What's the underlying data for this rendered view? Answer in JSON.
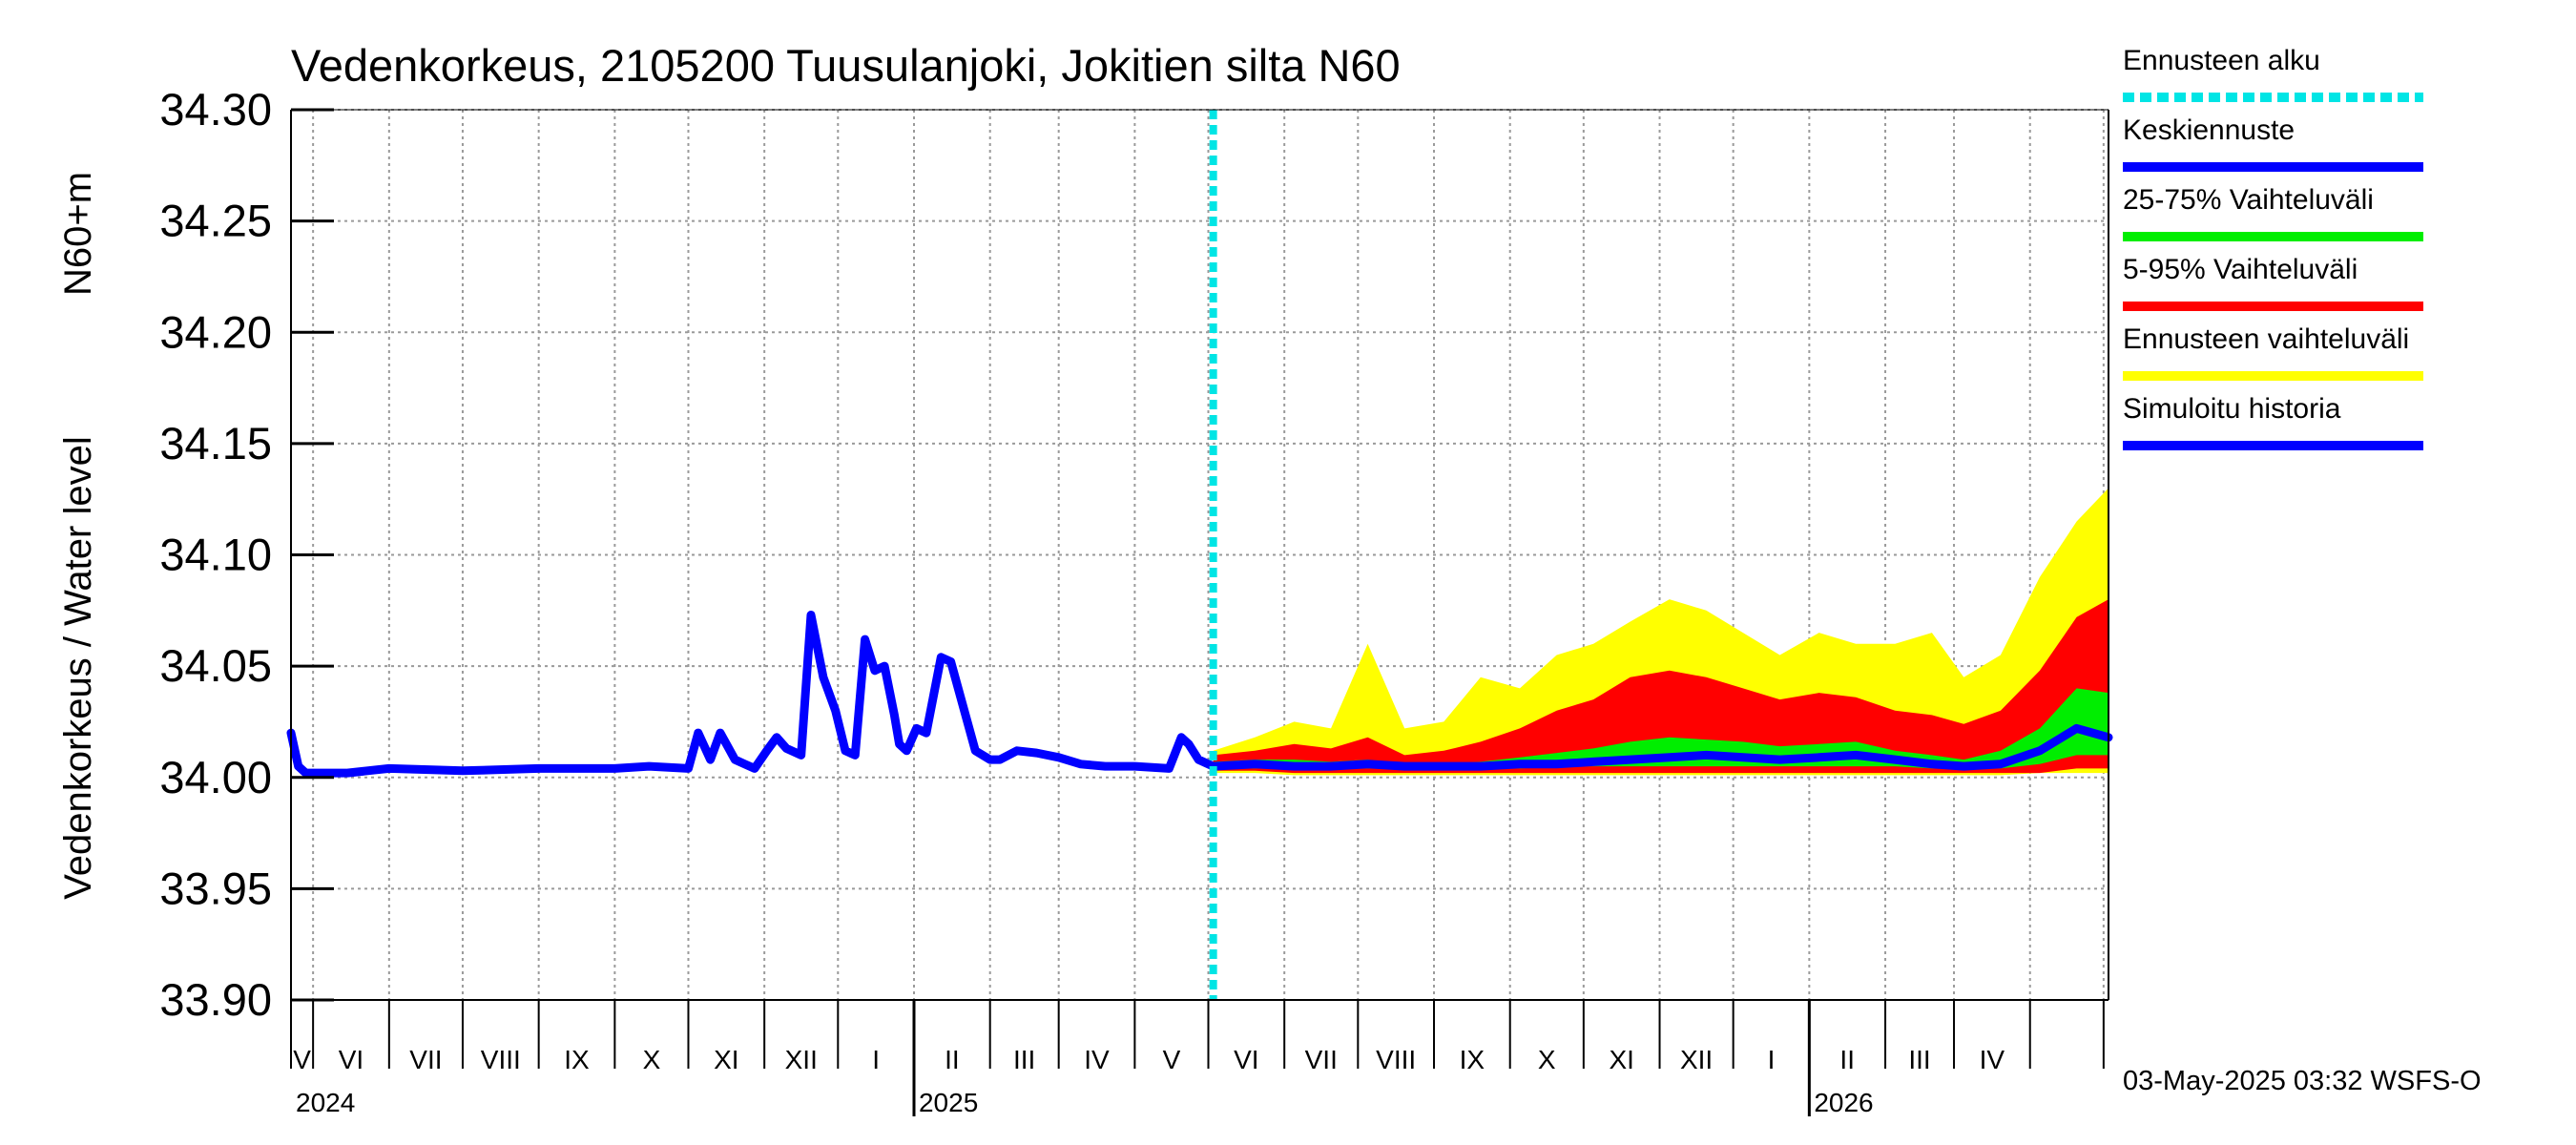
{
  "chart_data": {
    "type": "area",
    "title": "Vedenkorkeus, 2105200 Tuusulanjoki, Jokitien silta N60",
    "ylabel_main": "Vedenkorkeus / Water level",
    "ylabel_unit": "N60+m",
    "ylim": [
      33.9,
      34.3
    ],
    "yticks": [
      "34.30",
      "34.25",
      "34.20",
      "34.15",
      "34.10",
      "34.05",
      "34.00",
      "33.95",
      "33.90"
    ],
    "grid": true,
    "x_range": [
      "2024-04-22",
      "2026-05-03"
    ],
    "forecast_start": "2025-05-03",
    "month_labels": [
      "V",
      "VI",
      "VII",
      "VIII",
      "IX",
      "X",
      "XI",
      "XII",
      "I",
      "II",
      "III",
      "IV",
      "V",
      "VI",
      "VII",
      "VIII",
      "IX",
      "X",
      "XI",
      "XII",
      "I",
      "II",
      "III",
      "IV"
    ],
    "year_labels": [
      "2024",
      "2025",
      "2026"
    ],
    "legend": [
      {
        "label": "Ennusteen alku",
        "color": "#00e5e5",
        "style": "dashed"
      },
      {
        "label": "Keskiennuste",
        "color": "#0000ff",
        "style": "solid"
      },
      {
        "label": "25-75% Vaihteluväli",
        "color": "#00ee00",
        "style": "solid"
      },
      {
        "label": "5-95% Vaihteluväli",
        "color": "#ff0000",
        "style": "solid"
      },
      {
        "label": "Ennusteen vaihteluväli",
        "color": "#ffff00",
        "style": "solid"
      },
      {
        "label": "Simuloitu historia",
        "color": "#0000ff",
        "style": "solid"
      }
    ],
    "history": {
      "name": "Simuloitu historia",
      "x": [
        "2024-04-22",
        "2024-04-25",
        "2024-04-28",
        "2024-05-15",
        "2024-06-01",
        "2024-07-01",
        "2024-08-01",
        "2024-09-01",
        "2024-09-15",
        "2024-10-01",
        "2024-10-05",
        "2024-10-10",
        "2024-10-14",
        "2024-10-20",
        "2024-10-24",
        "2024-10-28",
        "2024-11-02",
        "2024-11-06",
        "2024-11-10",
        "2024-11-16",
        "2024-11-20",
        "2024-11-25",
        "2024-11-30",
        "2024-12-04",
        "2024-12-08",
        "2024-12-12",
        "2024-12-16",
        "2024-12-20",
        "2024-12-24",
        "2024-12-26",
        "2024-12-29",
        "2025-01-02",
        "2025-01-06",
        "2025-01-12",
        "2025-01-16",
        "2025-01-22",
        "2025-01-26",
        "2025-02-01",
        "2025-02-05",
        "2025-02-12",
        "2025-02-20",
        "2025-03-01",
        "2025-03-10",
        "2025-03-20",
        "2025-04-01",
        "2025-04-15",
        "2025-04-20",
        "2025-04-23",
        "2025-04-27",
        "2025-05-03"
      ],
      "y": [
        34.02,
        34.005,
        34.002,
        34.002,
        34.004,
        34.003,
        34.004,
        34.004,
        34.005,
        34.004,
        34.02,
        34.008,
        34.02,
        34.008,
        34.006,
        34.004,
        34.012,
        34.018,
        34.013,
        34.01,
        34.073,
        34.045,
        34.03,
        34.012,
        34.01,
        34.062,
        34.048,
        34.05,
        34.028,
        34.015,
        34.012,
        34.022,
        34.02,
        34.054,
        34.052,
        34.028,
        34.012,
        34.008,
        34.008,
        34.012,
        34.011,
        34.009,
        34.006,
        34.005,
        34.005,
        34.004,
        34.018,
        34.015,
        34.008,
        34.005
      ]
    },
    "forecast": {
      "x": [
        "2025-05-03",
        "2025-05-20",
        "2025-06-05",
        "2025-06-20",
        "2025-07-05",
        "2025-07-20",
        "2025-08-05",
        "2025-08-20",
        "2025-09-05",
        "2025-09-20",
        "2025-10-05",
        "2025-10-20",
        "2025-11-05",
        "2025-11-20",
        "2025-12-05",
        "2025-12-20",
        "2026-01-05",
        "2026-01-20",
        "2026-02-05",
        "2026-02-20",
        "2026-03-05",
        "2026-03-20",
        "2026-04-05",
        "2026-04-20",
        "2026-05-03"
      ],
      "median": [
        34.005,
        34.006,
        34.005,
        34.005,
        34.006,
        34.005,
        34.005,
        34.005,
        34.006,
        34.006,
        34.007,
        34.008,
        34.009,
        34.01,
        34.009,
        34.008,
        34.009,
        34.01,
        34.008,
        34.006,
        34.005,
        34.006,
        34.012,
        34.022,
        34.018
      ],
      "p25": [
        34.004,
        34.004,
        34.004,
        34.004,
        34.004,
        34.004,
        34.004,
        34.004,
        34.004,
        34.005,
        34.005,
        34.005,
        34.005,
        34.005,
        34.005,
        34.005,
        34.005,
        34.005,
        34.005,
        34.004,
        34.004,
        34.004,
        34.006,
        34.01,
        34.01
      ],
      "p75": [
        34.007,
        34.008,
        34.008,
        34.007,
        34.008,
        34.006,
        34.006,
        34.007,
        34.009,
        34.011,
        34.013,
        34.016,
        34.018,
        34.017,
        34.016,
        34.014,
        34.015,
        34.016,
        34.012,
        34.01,
        34.008,
        34.012,
        34.022,
        34.04,
        34.038
      ],
      "p05": [
        34.003,
        34.003,
        34.002,
        34.002,
        34.002,
        34.002,
        34.002,
        34.002,
        34.002,
        34.002,
        34.002,
        34.002,
        34.002,
        34.002,
        34.002,
        34.002,
        34.002,
        34.002,
        34.002,
        34.002,
        34.002,
        34.002,
        34.002,
        34.004,
        34.004
      ],
      "p95": [
        34.01,
        34.012,
        34.015,
        34.013,
        34.018,
        34.01,
        34.012,
        34.016,
        34.022,
        34.03,
        34.035,
        34.045,
        34.048,
        34.045,
        34.04,
        34.035,
        34.038,
        34.036,
        34.03,
        34.028,
        34.024,
        34.03,
        34.048,
        34.072,
        34.08
      ],
      "min": [
        34.002,
        34.002,
        34.001,
        34.001,
        34.001,
        34.001,
        34.001,
        34.001,
        34.001,
        34.001,
        34.001,
        34.001,
        34.001,
        34.001,
        34.001,
        34.001,
        34.001,
        34.001,
        34.001,
        34.001,
        34.001,
        34.001,
        34.002,
        34.002,
        34.002
      ],
      "max": [
        34.012,
        34.018,
        34.025,
        34.022,
        34.06,
        34.022,
        34.025,
        34.045,
        34.04,
        34.055,
        34.06,
        34.07,
        34.08,
        34.075,
        34.065,
        34.055,
        34.065,
        34.06,
        34.06,
        34.065,
        34.045,
        34.055,
        34.09,
        34.115,
        34.13
      ]
    }
  },
  "footer_text": "03-May-2025 03:32 WSFS-O"
}
